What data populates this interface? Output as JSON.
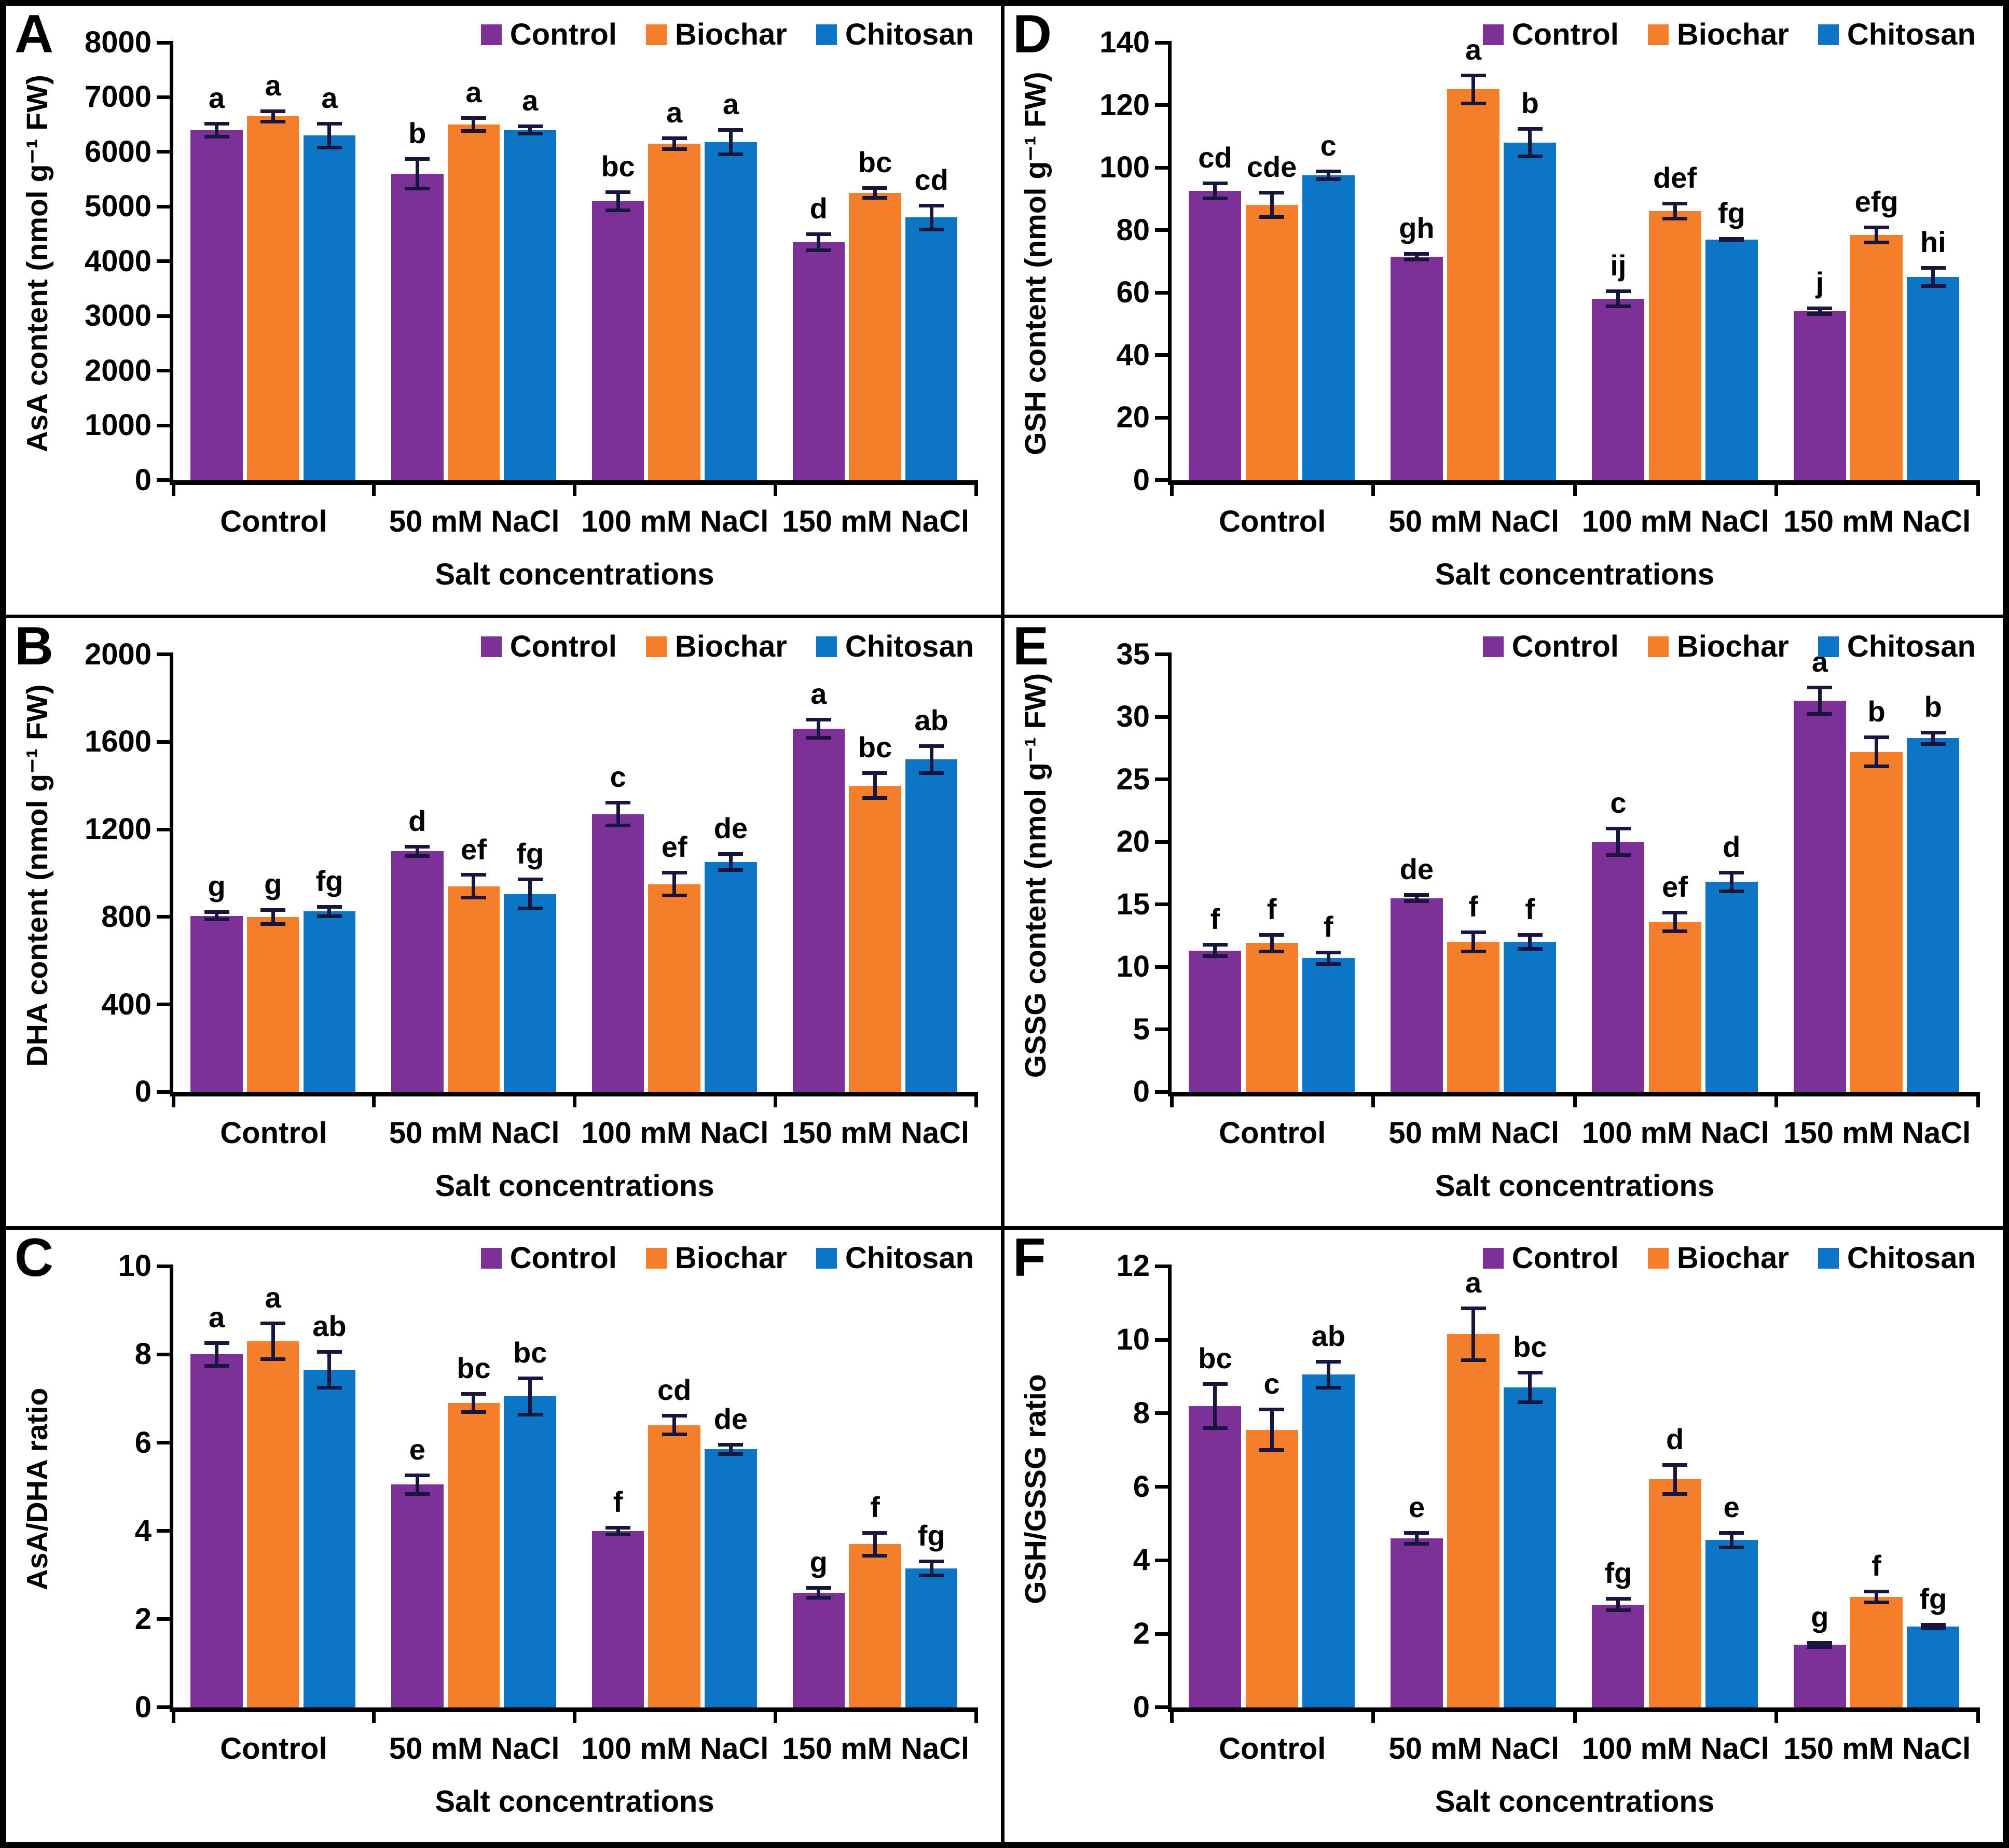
{
  "figure": {
    "x_axis_title": "Salt concentrations",
    "categories": [
      "Control",
      "50 mM NaCl",
      "100 mM NaCl",
      "150 mM NaCl"
    ],
    "legend": {
      "items": [
        {
          "label": "Control",
          "color": "#7D3098"
        },
        {
          "label": "Biochar",
          "color": "#F57E29"
        },
        {
          "label": "Chitosan",
          "color": "#0C76C4"
        }
      ]
    },
    "colors": {
      "error_bar": "#16163f",
      "axis": "#000000",
      "background": "#ffffff"
    }
  },
  "chart_data": [
    {
      "letter": "A",
      "type": "bar",
      "ylabel": "AsA content (nmol g⁻¹ FW)",
      "xlabel": "Salt concentrations",
      "ylim": [
        0,
        8000
      ],
      "ytick_step": 1000,
      "legend_position": "top-right",
      "grid": false,
      "categories": [
        "Control",
        "50 mM NaCl",
        "100 mM NaCl",
        "150 mM NaCl"
      ],
      "series": [
        {
          "name": "Control",
          "color": "#7D3098",
          "values": [
            6400,
            5600,
            5100,
            4350
          ],
          "errors": [
            150,
            300,
            200,
            180
          ],
          "letters": [
            "a",
            "b",
            "bc",
            "d"
          ]
        },
        {
          "name": "Biochar",
          "color": "#F57E29",
          "values": [
            6650,
            6500,
            6150,
            5250
          ],
          "errors": [
            130,
            150,
            130,
            120
          ],
          "letters": [
            "a",
            "a",
            "a",
            "bc"
          ]
        },
        {
          "name": "Chitosan",
          "color": "#0C76C4",
          "values": [
            6300,
            6400,
            6180,
            4800
          ],
          "errors": [
            250,
            100,
            260,
            250
          ],
          "letters": [
            "a",
            "a",
            "a",
            "cd"
          ]
        }
      ]
    },
    {
      "letter": "D",
      "type": "bar",
      "ylabel": "GSH content (nmol g⁻¹ FW)",
      "xlabel": "Salt concentrations",
      "ylim": [
        0,
        140
      ],
      "ytick_step": 20,
      "legend_position": "top-right",
      "grid": false,
      "categories": [
        "Control",
        "50 mM NaCl",
        "100 mM NaCl",
        "150 mM NaCl"
      ],
      "series": [
        {
          "name": "Control",
          "color": "#7D3098",
          "values": [
            92.5,
            71.5,
            58,
            54
          ],
          "errors": [
            3,
            1.5,
            3,
            1.5
          ],
          "letters": [
            "cd",
            "gh",
            "ij",
            "j"
          ]
        },
        {
          "name": "Biochar",
          "color": "#F57E29",
          "values": [
            88,
            125,
            86,
            78.5
          ],
          "errors": [
            4.5,
            5,
            3,
            3
          ],
          "letters": [
            "cde",
            "a",
            "def",
            "efg"
          ]
        },
        {
          "name": "Chitosan",
          "color": "#0C76C4",
          "values": [
            97.5,
            108,
            77,
            65
          ],
          "errors": [
            1.8,
            5,
            0.8,
            3.5
          ],
          "letters": [
            "c",
            "b",
            "fg",
            "hi"
          ]
        }
      ]
    },
    {
      "letter": "B",
      "type": "bar",
      "ylabel": "DHA content (nmol g⁻¹ FW)",
      "xlabel": "Salt concentrations",
      "ylim": [
        0,
        2000
      ],
      "ytick_step": 400,
      "legend_position": "top-right",
      "grid": false,
      "categories": [
        "Control",
        "50 mM NaCl",
        "100 mM NaCl",
        "150 mM NaCl"
      ],
      "series": [
        {
          "name": "Control",
          "color": "#7D3098",
          "values": [
            805,
            1100,
            1270,
            1660
          ],
          "errors": [
            25,
            30,
            60,
            50
          ],
          "letters": [
            "g",
            "d",
            "c",
            "a"
          ]
        },
        {
          "name": "Biochar",
          "color": "#F57E29",
          "values": [
            800,
            940,
            950,
            1400
          ],
          "errors": [
            40,
            60,
            60,
            65
          ],
          "letters": [
            "g",
            "ef",
            "ef",
            "bc"
          ]
        },
        {
          "name": "Chitosan",
          "color": "#0C76C4",
          "values": [
            825,
            905,
            1050,
            1520
          ],
          "errors": [
            30,
            75,
            45,
            70
          ],
          "letters": [
            "fg",
            "fg",
            "de",
            "ab"
          ]
        }
      ]
    },
    {
      "letter": "E",
      "type": "bar",
      "ylabel": "GSSG content (nmol g⁻¹ FW)",
      "xlabel": "Salt concentrations",
      "ylim": [
        0,
        35
      ],
      "ytick_step": 5,
      "legend_position": "top-right",
      "grid": false,
      "categories": [
        "Control",
        "50 mM NaCl",
        "100 mM NaCl",
        "150 mM NaCl"
      ],
      "series": [
        {
          "name": "Control",
          "color": "#7D3098",
          "values": [
            11.3,
            15.5,
            20,
            31.3
          ],
          "errors": [
            0.6,
            0.4,
            1.2,
            1.2
          ],
          "letters": [
            "f",
            "de",
            "c",
            "a"
          ]
        },
        {
          "name": "Biochar",
          "color": "#F57E29",
          "values": [
            11.9,
            12,
            13.6,
            27.2
          ],
          "errors": [
            0.8,
            0.9,
            0.9,
            1.3
          ],
          "letters": [
            "f",
            "f",
            "ef",
            "b"
          ]
        },
        {
          "name": "Chitosan",
          "color": "#0C76C4",
          "values": [
            10.7,
            12,
            16.8,
            28.3
          ],
          "errors": [
            0.6,
            0.7,
            0.9,
            0.6
          ],
          "letters": [
            "f",
            "f",
            "d",
            "b"
          ]
        }
      ]
    },
    {
      "letter": "C",
      "type": "bar",
      "ylabel": "AsA/DHA ratio",
      "xlabel": "Salt concentrations",
      "ylim": [
        0,
        10
      ],
      "ytick_step": 2,
      "legend_position": "top-right",
      "grid": false,
      "categories": [
        "Control",
        "50 mM NaCl",
        "100 mM NaCl",
        "150 mM NaCl"
      ],
      "series": [
        {
          "name": "Control",
          "color": "#7D3098",
          "values": [
            8.0,
            5.05,
            4.0,
            2.6
          ],
          "errors": [
            0.3,
            0.25,
            0.12,
            0.15
          ],
          "letters": [
            "a",
            "e",
            "f",
            "g"
          ]
        },
        {
          "name": "Biochar",
          "color": "#F57E29",
          "values": [
            8.3,
            6.9,
            6.4,
            3.7
          ],
          "errors": [
            0.45,
            0.25,
            0.25,
            0.3
          ],
          "letters": [
            "a",
            "bc",
            "cd",
            "f"
          ]
        },
        {
          "name": "Chitosan",
          "color": "#0C76C4",
          "values": [
            7.65,
            7.05,
            5.85,
            3.15
          ],
          "errors": [
            0.45,
            0.45,
            0.15,
            0.2
          ],
          "letters": [
            "ab",
            "bc",
            "de",
            "fg"
          ]
        }
      ]
    },
    {
      "letter": "F",
      "type": "bar",
      "ylabel": "GSH/GSSG ratio",
      "xlabel": "Salt concentrations",
      "ylim": [
        0,
        12
      ],
      "ytick_step": 2,
      "legend_position": "top-right",
      "grid": false,
      "categories": [
        "Control",
        "50 mM NaCl",
        "100 mM NaCl",
        "150 mM NaCl"
      ],
      "series": [
        {
          "name": "Control",
          "color": "#7D3098",
          "values": [
            8.2,
            4.6,
            2.8,
            1.7
          ],
          "errors": [
            0.65,
            0.2,
            0.2,
            0.1
          ],
          "letters": [
            "bc",
            "e",
            "fg",
            "g"
          ]
        },
        {
          "name": "Biochar",
          "color": "#F57E29",
          "values": [
            7.55,
            10.15,
            6.2,
            3.0
          ],
          "errors": [
            0.6,
            0.75,
            0.45,
            0.2
          ],
          "letters": [
            "c",
            "a",
            "d",
            "f"
          ]
        },
        {
          "name": "Chitosan",
          "color": "#0C76C4",
          "values": [
            9.05,
            8.7,
            4.55,
            2.2
          ],
          "errors": [
            0.4,
            0.45,
            0.25,
            0.1
          ],
          "letters": [
            "ab",
            "bc",
            "e",
            "fg"
          ]
        }
      ]
    }
  ]
}
